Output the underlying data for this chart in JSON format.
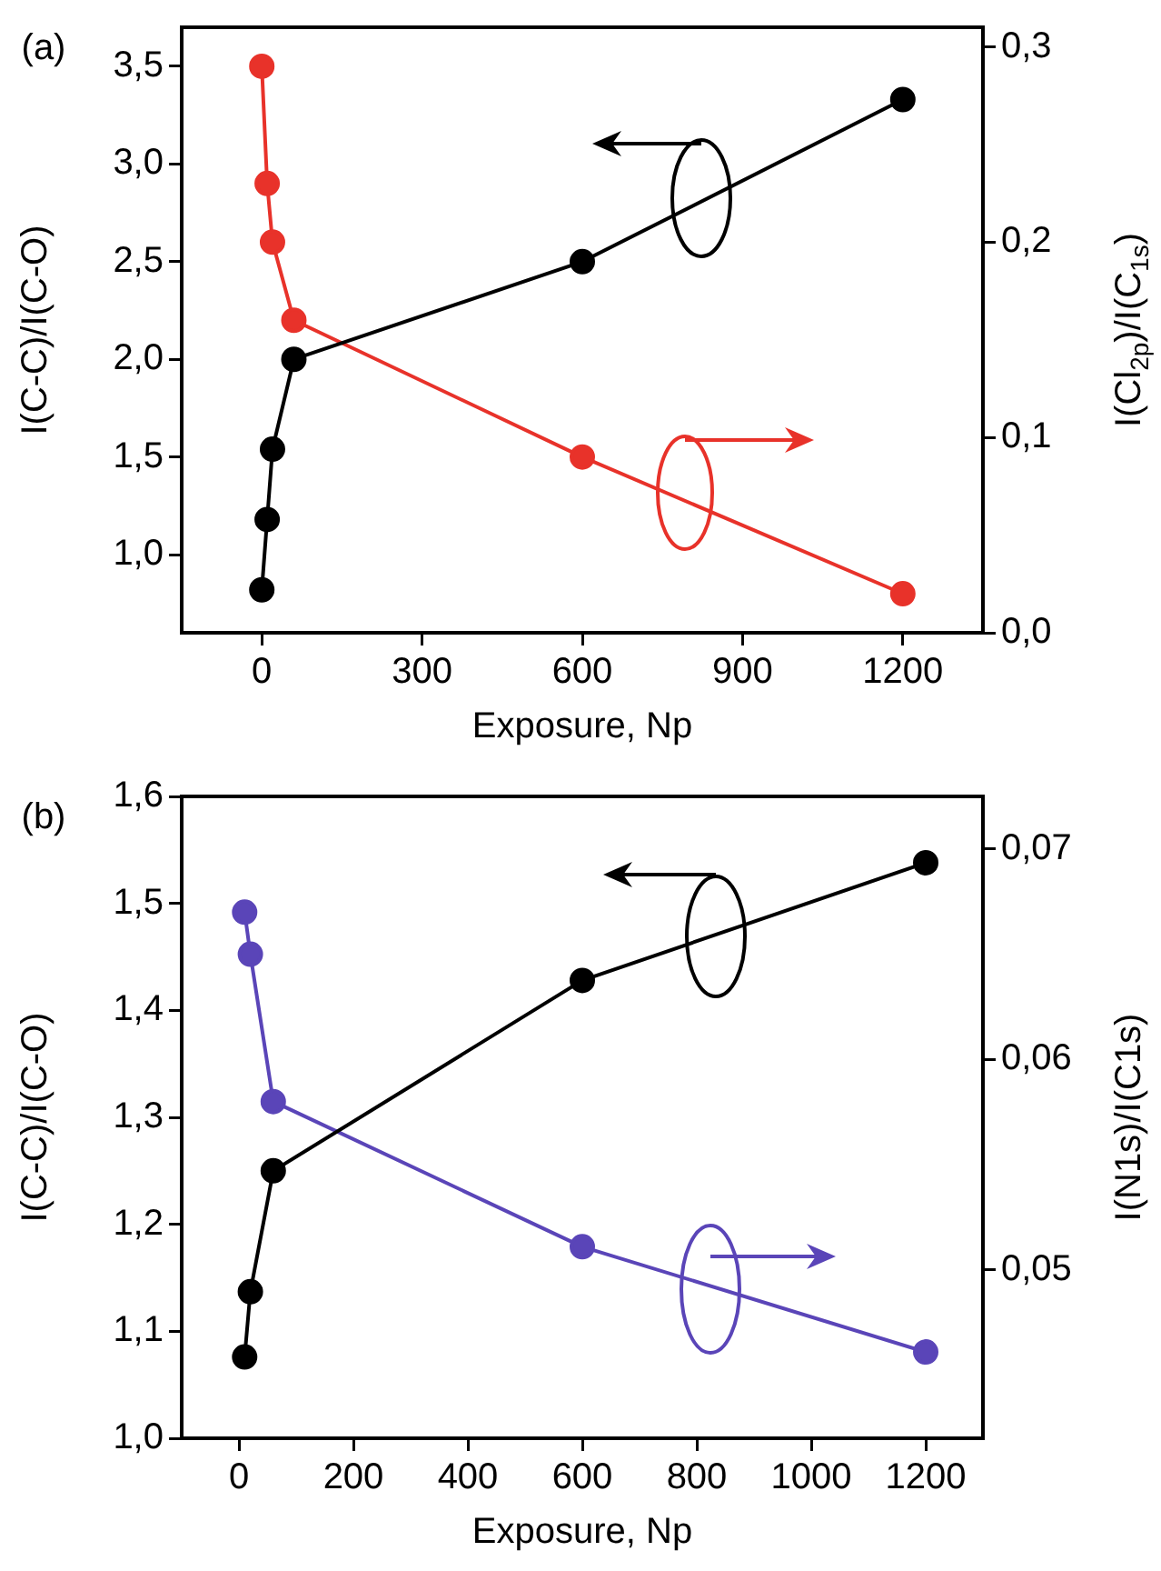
{
  "chart_data": [
    {
      "type": "line",
      "annotations": [
        "(a)"
      ],
      "xlabel": "Exposure, Np",
      "ylabel": "I(C-C)/I(C-O)",
      "y2label": "I(Cl$_{2p}$)/I(C$_{1s}$)",
      "x": [
        0,
        10,
        20,
        60,
        600,
        1200
      ],
      "xlim": [
        -150,
        1350
      ],
      "xticks": [
        0,
        300,
        600,
        900,
        1200
      ],
      "ylim": [
        0.6,
        3.7
      ],
      "yticks": [
        {
          "value": 1.0,
          "label": "1,0"
        },
        {
          "value": 1.5,
          "label": "1,5"
        },
        {
          "value": 2.0,
          "label": "2,0"
        },
        {
          "value": 2.5,
          "label": "2,5"
        },
        {
          "value": 3.0,
          "label": "3,0"
        },
        {
          "value": 3.5,
          "label": "3,5"
        }
      ],
      "y2lim": [
        0,
        0.31
      ],
      "y2ticks": [
        {
          "value": 0,
          "label": "0,0"
        },
        {
          "value": 0.1,
          "label": "0,1"
        },
        {
          "value": 0.2,
          "label": "0,2"
        },
        {
          "value": 0.3,
          "label": "0,3"
        }
      ],
      "series": [
        {
          "color": "#000000",
          "values": [
            0.82,
            1.18,
            1.54,
            2.0,
            2.5,
            3.33
          ]
        },
        {
          "color": "#e8322a",
          "axis": "y2",
          "values": [
            0.29,
            0.23,
            0.2,
            0.16,
            0.09,
            0.02
          ]
        }
      ],
      "marker": "circle",
      "grid": false,
      "legend": false
    },
    {
      "type": "line",
      "annotations": [
        "(b)"
      ],
      "xlabel": "Exposure, Np",
      "ylabel": "I(C-C)/I(C-O)",
      "y2label": "I(N1s)/I(C1s)",
      "x": [
        10,
        20,
        60,
        600,
        1200
      ],
      "xlim": [
        -100,
        1300
      ],
      "xticks": [
        0,
        200,
        400,
        600,
        800,
        1000,
        1200
      ],
      "ylim": [
        1.0,
        1.6
      ],
      "yticks": [
        {
          "value": 1.0,
          "label": "1,0"
        },
        {
          "value": 1.1,
          "label": "1,1"
        },
        {
          "value": 1.2,
          "label": "1,2"
        },
        {
          "value": 1.3,
          "label": "1,3"
        },
        {
          "value": 1.4,
          "label": "1,4"
        },
        {
          "value": 1.5,
          "label": "1,5"
        },
        {
          "value": 1.6,
          "label": "1,6"
        }
      ],
      "y2lim": [
        0.042,
        0.0725
      ],
      "y2ticks": [
        {
          "value": 0.05,
          "label": "0,05"
        },
        {
          "value": 0.06,
          "label": "0,06"
        },
        {
          "value": 0.07,
          "label": "0,07"
        }
      ],
      "series": [
        {
          "color": "#000000",
          "values": [
            1.076,
            1.137,
            1.25,
            1.428,
            1.538
          ]
        },
        {
          "color": "#5a45b8",
          "axis": "y2",
          "values": [
            0.067,
            0.065,
            0.058,
            0.0511,
            0.0461
          ]
        }
      ],
      "marker": "circle",
      "grid": false,
      "legend": false
    }
  ]
}
